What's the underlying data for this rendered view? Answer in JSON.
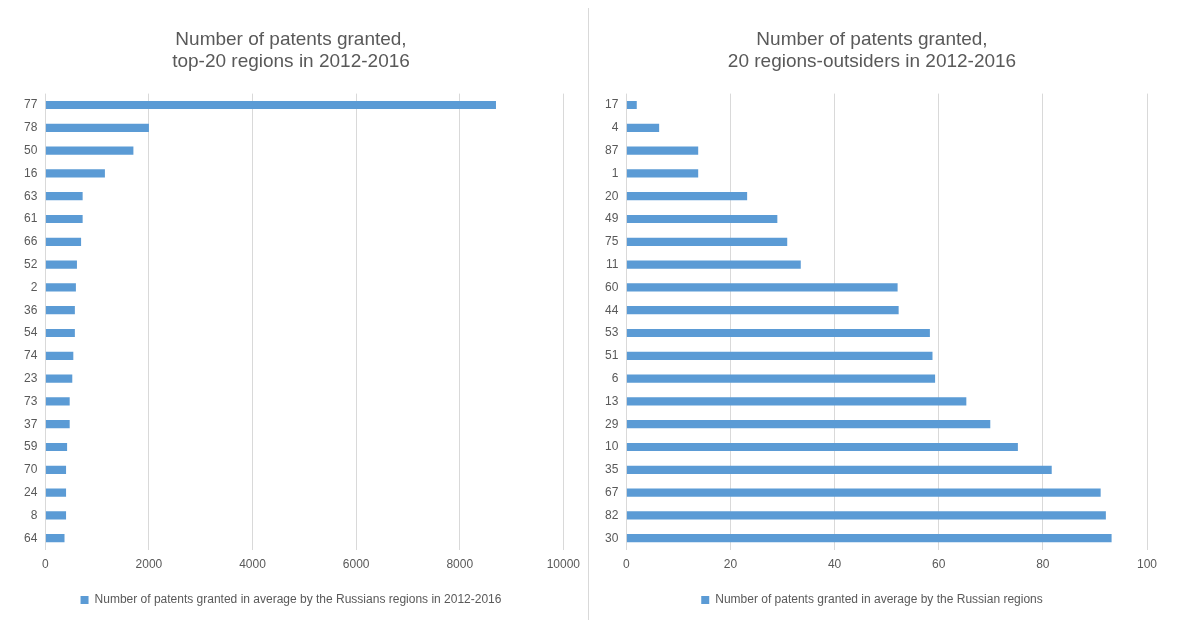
{
  "chart_data": [
    {
      "type": "bar",
      "orientation": "horizontal",
      "title": "Number of patents granted,\ntop-20 regions in 2012-2016",
      "categories": [
        "77",
        "78",
        "50",
        "16",
        "63",
        "61",
        "66",
        "52",
        "2",
        "36",
        "54",
        "74",
        "23",
        "73",
        "37",
        "59",
        "70",
        "24",
        "8",
        "64"
      ],
      "series": [
        {
          "name": "Number of patents granted in average by the Russians regions in 2012-2016",
          "color": "#5b9bd5",
          "values": [
            8700,
            2000,
            1700,
            1150,
            720,
            720,
            690,
            610,
            590,
            570,
            570,
            540,
            520,
            470,
            470,
            420,
            400,
            400,
            400,
            370
          ]
        }
      ],
      "xlim": [
        0,
        10000
      ],
      "xticks": [
        0,
        2000,
        4000,
        6000,
        8000,
        10000
      ],
      "grid": "x",
      "legend": "bottom"
    },
    {
      "type": "bar",
      "orientation": "horizontal",
      "title": "Number of patents granted,\n20 regions-outsiders in 2012-2016",
      "categories": [
        "17",
        "4",
        "87",
        "1",
        "20",
        "49",
        "75",
        "11",
        "60",
        "44",
        "53",
        "51",
        "6",
        "13",
        "29",
        "10",
        "35",
        "67",
        "82",
        "30"
      ],
      "series": [
        {
          "name": "Number of patents granted in average by the Russian regions",
          "color": "#5b9bd5",
          "values": [
            2.0,
            6.3,
            13.8,
            13.8,
            23.2,
            29.0,
            30.9,
            33.5,
            52.1,
            52.3,
            58.3,
            58.8,
            59.3,
            65.3,
            69.9,
            75.2,
            81.7,
            91.1,
            92.1,
            93.2
          ]
        }
      ],
      "xlim": [
        0,
        100
      ],
      "xticks": [
        0,
        20,
        40,
        60,
        80,
        100
      ],
      "grid": "x",
      "legend": "bottom"
    }
  ]
}
